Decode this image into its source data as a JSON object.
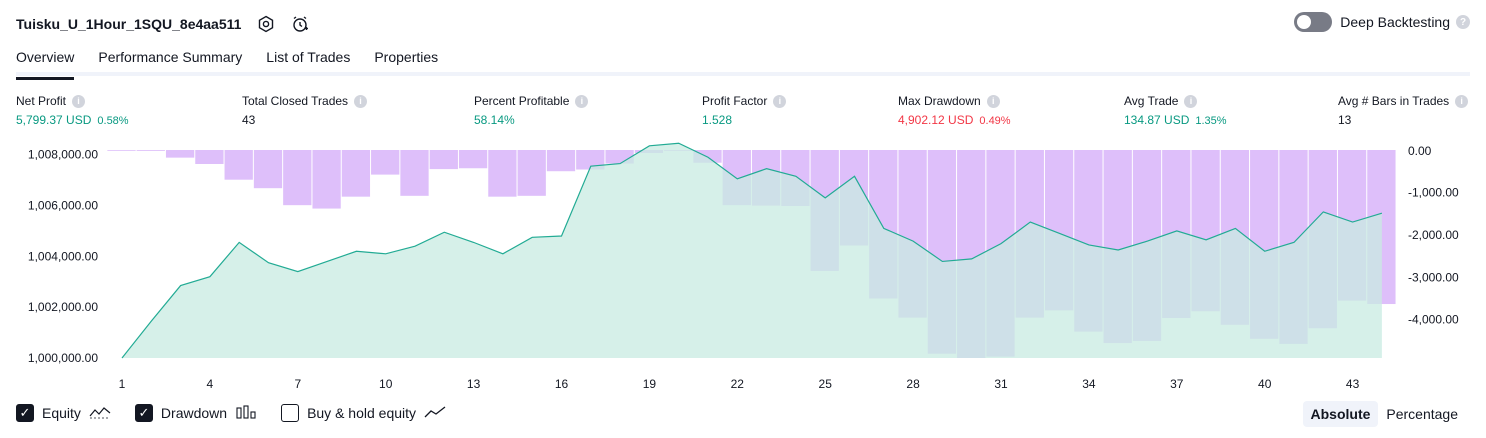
{
  "header": {
    "title": "Tuisku_U_1Hour_1SQU_8e4aa511",
    "deep_backtesting_label": "Deep Backtesting",
    "deep_backtesting_on": false
  },
  "tabs": [
    "Overview",
    "Performance Summary",
    "List of Trades",
    "Properties"
  ],
  "active_tab": "Overview",
  "metrics": {
    "net_profit": {
      "label": "Net Profit",
      "value": "5,799.37 USD",
      "pct": "0.58%"
    },
    "total_closed_trades": {
      "label": "Total Closed Trades",
      "value": "43"
    },
    "percent_profitable": {
      "label": "Percent Profitable",
      "value": "58.14%"
    },
    "profit_factor": {
      "label": "Profit Factor",
      "value": "1.528"
    },
    "max_drawdown": {
      "label": "Max Drawdown",
      "value": "4,902.12 USD",
      "pct": "0.49%"
    },
    "avg_trade": {
      "label": "Avg Trade",
      "value": "134.87 USD",
      "pct": "1.35%"
    },
    "avg_bars": {
      "label": "Avg # Bars in Trades",
      "value": "13"
    }
  },
  "legend": {
    "equity": "Equity",
    "drawdown": "Drawdown",
    "buyhold": "Buy & hold equity"
  },
  "modes": {
    "absolute": "Absolute",
    "percentage": "Percentage",
    "active": "Absolute"
  },
  "colors": {
    "equity_line": "#22ab94",
    "equity_fill": "#c8ebe2",
    "drawdown_fill": "#dcbcfa",
    "positive": "#089981",
    "negative": "#f23645"
  },
  "chart_data": {
    "type": "area",
    "x": [
      1,
      2,
      3,
      4,
      5,
      6,
      7,
      8,
      9,
      10,
      11,
      12,
      13,
      14,
      15,
      16,
      17,
      18,
      19,
      20,
      21,
      22,
      23,
      24,
      25,
      26,
      27,
      28,
      29,
      30,
      31,
      32,
      33,
      34,
      35,
      36,
      37,
      38,
      39,
      40,
      41,
      42,
      43,
      44
    ],
    "x_tick_labels": [
      "1",
      "4",
      "7",
      "10",
      "13",
      "16",
      "19",
      "22",
      "25",
      "28",
      "31",
      "34",
      "37",
      "40",
      "43"
    ],
    "series": [
      {
        "name": "Equity",
        "axis": "left",
        "values": [
          1000000,
          1001450,
          1002850,
          1003200,
          1004550,
          1003750,
          1003400,
          1003800,
          1004200,
          1004100,
          1004400,
          1004950,
          1004550,
          1004100,
          1004750,
          1004800,
          1007550,
          1007650,
          1008350,
          1008450,
          1007900,
          1007050,
          1007450,
          1007150,
          1006300,
          1007150,
          1005100,
          1004600,
          1003800,
          1003900,
          1004500,
          1005350,
          1004900,
          1004450,
          1004250,
          1004600,
          1005000,
          1004650,
          1005100,
          1004200,
          1004550,
          1005750,
          1005350,
          1005700
        ]
      },
      {
        "name": "Drawdown",
        "axis": "right",
        "values": [
          -10,
          -20,
          -180,
          -330,
          -700,
          -900,
          -1300,
          -1380,
          -1100,
          -580,
          -1080,
          -450,
          -430,
          -1100,
          -1080,
          -500,
          -460,
          -320,
          -70,
          0,
          -300,
          -1300,
          -1310,
          -1320,
          -2850,
          -2250,
          -3500,
          -3950,
          -4800,
          -4902,
          -4870,
          -3950,
          -3780,
          -4280,
          -4550,
          -4500,
          -3960,
          -3800,
          -4120,
          -4450,
          -4570,
          -4200,
          -3550,
          -3630
        ]
      }
    ],
    "left_axis": {
      "ticks": [
        "1,000,000.00",
        "1,002,000.00",
        "1,004,000.00",
        "1,006,000.00",
        "1,008,000.00"
      ],
      "range": [
        1000000,
        1008500
      ]
    },
    "right_axis": {
      "ticks": [
        "0.00",
        "-1,000.00",
        "-2,000.00",
        "-3,000.00",
        "-4,000.00"
      ],
      "range": [
        -4902,
        0
      ]
    },
    "grid": false
  }
}
